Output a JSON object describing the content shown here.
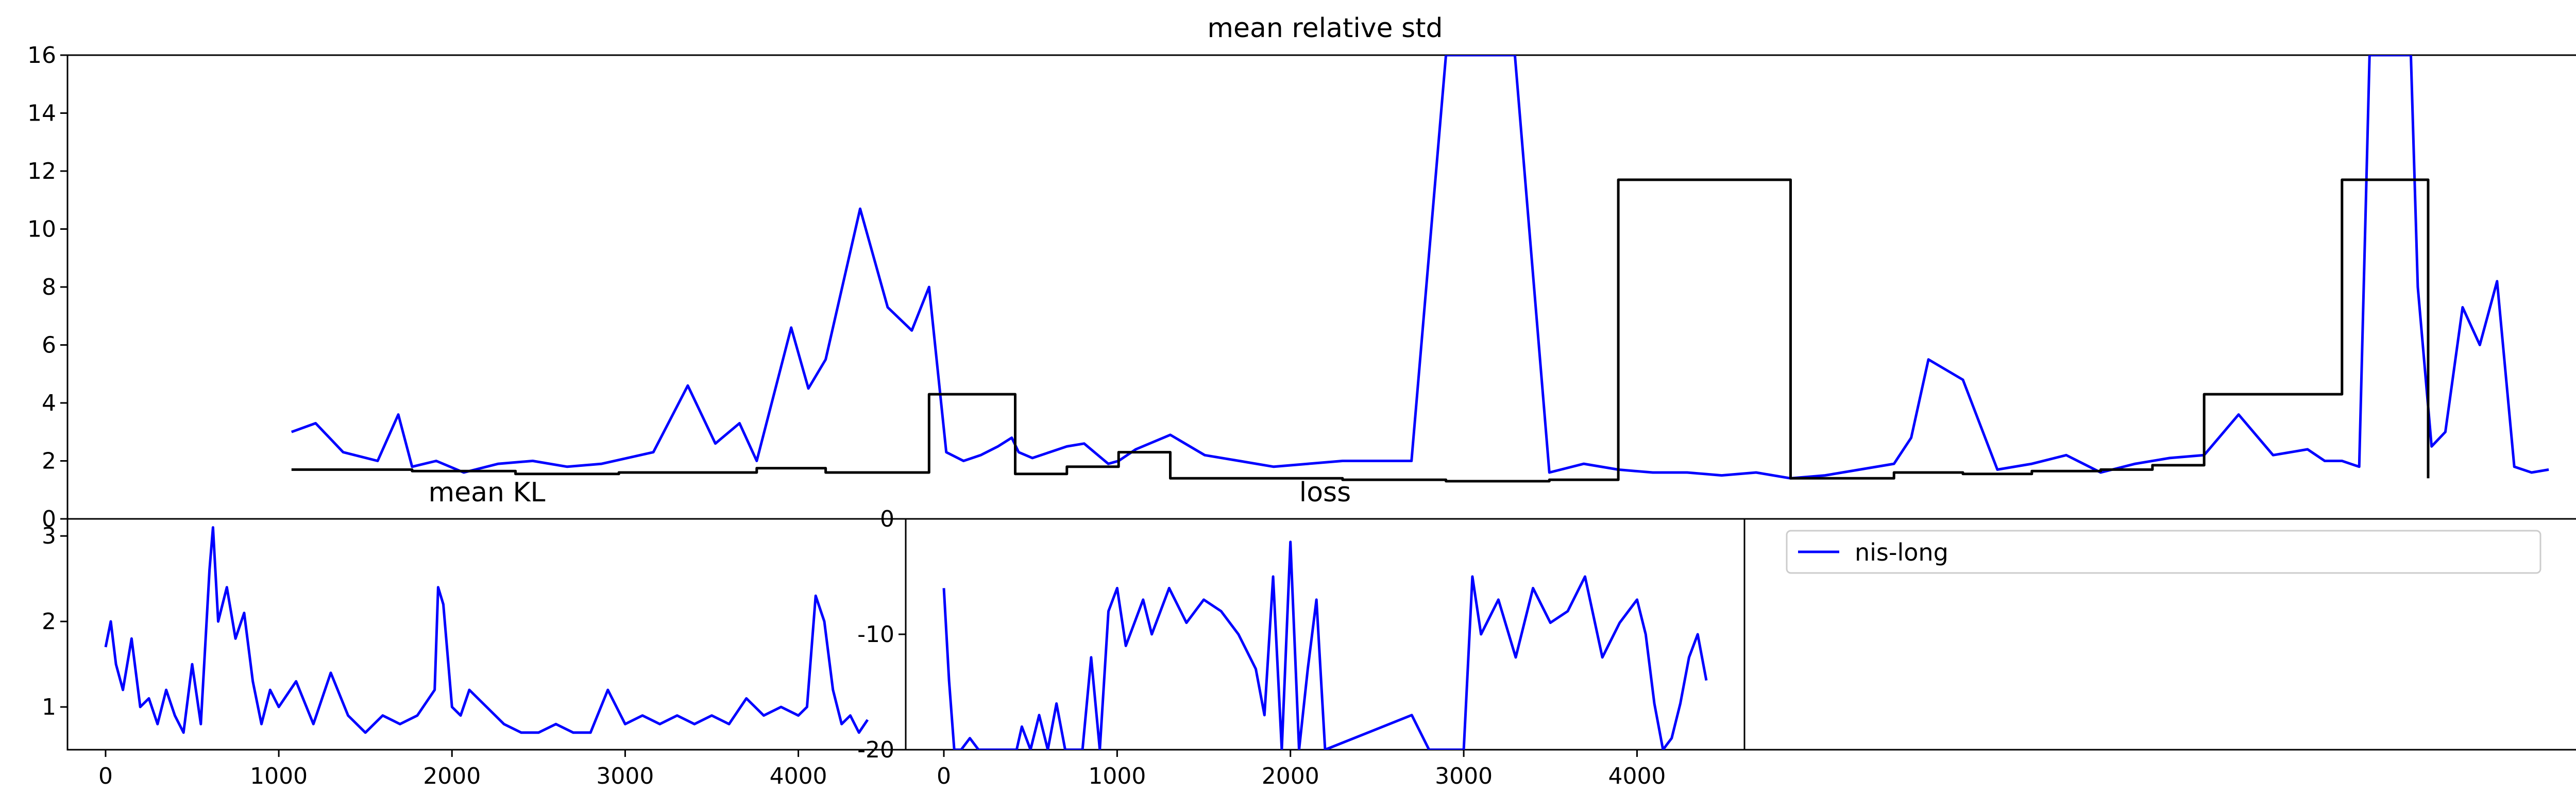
{
  "chart_data": [
    {
      "id": "std",
      "type": "line",
      "title": "mean relative std",
      "xlim": [
        -200,
        7100
      ],
      "ylim": [
        0,
        16
      ],
      "yticks": [
        0,
        2,
        4,
        6,
        8,
        10,
        12,
        14,
        16
      ],
      "series": [
        {
          "name": "nis-long",
          "color": "#0000ff",
          "x": [
            450,
            520,
            600,
            700,
            760,
            800,
            870,
            950,
            1050,
            1150,
            1250,
            1350,
            1500,
            1600,
            1680,
            1750,
            1800,
            1900,
            1950,
            2000,
            2100,
            2180,
            2250,
            2300,
            2350,
            2400,
            2450,
            2500,
            2540,
            2560,
            2600,
            2650,
            2700,
            2750,
            2820,
            2850,
            2900,
            3000,
            3100,
            3200,
            3300,
            3400,
            3500,
            3600,
            3700,
            3800,
            3900,
            4000,
            4100,
            4200,
            4300,
            4400,
            4500,
            4600,
            4700,
            4800,
            4900,
            5000,
            5100,
            5150,
            5200,
            5300,
            5400,
            5500,
            5600,
            5700,
            5800,
            5900,
            6000,
            6100,
            6200,
            6300,
            6350,
            6400,
            6450,
            6480,
            6500,
            6550,
            6600,
            6620,
            6660,
            6700,
            6750,
            6800,
            6850,
            6900,
            6950,
            7000
          ],
          "y": [
            3.0,
            3.3,
            2.3,
            2.0,
            3.6,
            1.8,
            2.0,
            1.6,
            1.9,
            2.0,
            1.8,
            1.9,
            2.3,
            4.6,
            2.6,
            3.3,
            2.0,
            6.6,
            4.5,
            5.5,
            10.7,
            7.3,
            6.5,
            8.0,
            2.3,
            2.0,
            2.2,
            2.5,
            2.8,
            2.3,
            2.1,
            2.3,
            2.5,
            2.6,
            1.9,
            2.0,
            2.4,
            2.9,
            2.2,
            2.0,
            1.8,
            1.9,
            2.0,
            2.0,
            2.0,
            16,
            16,
            16,
            1.6,
            1.9,
            1.7,
            1.6,
            1.6,
            1.5,
            1.6,
            1.4,
            1.5,
            1.7,
            1.9,
            2.8,
            5.5,
            4.8,
            1.7,
            1.9,
            2.2,
            1.6,
            1.9,
            2.1,
            2.2,
            3.6,
            2.2,
            2.4,
            2.0,
            2.0,
            1.8,
            16,
            16,
            16,
            16,
            8.0,
            2.5,
            3.0,
            7.3,
            6.0,
            8.2,
            1.8,
            1.6,
            1.7
          ]
        },
        {
          "name": "",
          "color": "#000000",
          "x": [
            450,
            800,
            1100,
            1400,
            1800,
            2000,
            2300,
            2550,
            2700,
            2850,
            3000,
            3300,
            3500,
            3800,
            4100,
            4300,
            4800,
            5100,
            5300,
            5500,
            5700,
            5850,
            6000,
            6400,
            6650
          ],
          "y": [
            1.7,
            1.65,
            1.55,
            1.6,
            1.75,
            1.6,
            4.3,
            1.55,
            1.8,
            2.3,
            1.4,
            1.4,
            1.35,
            1.3,
            1.35,
            11.7,
            1.4,
            1.6,
            1.55,
            1.65,
            1.7,
            1.85,
            4.3,
            11.7,
            1.4
          ],
          "step": true
        }
      ]
    },
    {
      "id": "kl",
      "type": "line",
      "title": "mean KL",
      "xlim": [
        -220,
        4620
      ],
      "ylim": [
        0.5,
        3.2
      ],
      "yticks": [
        1,
        2,
        3
      ],
      "xticks": [
        0,
        1000,
        2000,
        3000,
        4000
      ],
      "series": [
        {
          "name": "nis-long",
          "color": "#0000ff",
          "x": [
            0,
            30,
            60,
            100,
            150,
            200,
            250,
            300,
            350,
            400,
            450,
            500,
            550,
            600,
            620,
            650,
            700,
            750,
            800,
            850,
            900,
            950,
            1000,
            1100,
            1200,
            1300,
            1400,
            1500,
            1600,
            1700,
            1800,
            1900,
            1920,
            1950,
            2000,
            2050,
            2100,
            2200,
            2300,
            2400,
            2500,
            2600,
            2700,
            2800,
            2900,
            3000,
            3100,
            3200,
            3300,
            3400,
            3500,
            3600,
            3700,
            3800,
            3900,
            4000,
            4050,
            4100,
            4150,
            4200,
            4250,
            4300,
            4350,
            4400
          ],
          "y": [
            1.7,
            2.0,
            1.5,
            1.2,
            1.8,
            1.0,
            1.1,
            0.8,
            1.2,
            0.9,
            0.7,
            1.5,
            0.8,
            2.6,
            3.1,
            2.0,
            2.4,
            1.8,
            2.1,
            1.3,
            0.8,
            1.2,
            1.0,
            1.3,
            0.8,
            1.4,
            0.9,
            0.7,
            0.9,
            0.8,
            0.9,
            1.2,
            2.4,
            2.2,
            1.0,
            0.9,
            1.2,
            1.0,
            0.8,
            0.7,
            0.7,
            0.8,
            0.7,
            0.7,
            1.2,
            0.8,
            0.9,
            0.8,
            0.9,
            0.8,
            0.9,
            0.8,
            1.1,
            0.9,
            1.0,
            0.9,
            1.0,
            2.3,
            2.0,
            1.2,
            0.8,
            0.9,
            0.7,
            0.85
          ]
        }
      ]
    },
    {
      "id": "loss",
      "type": "line",
      "title": "loss",
      "xlim": [
        -220,
        4620
      ],
      "ylim": [
        -20,
        0
      ],
      "yticks": [
        0,
        -10,
        -20
      ],
      "xticks": [
        0,
        1000,
        2000,
        3000,
        4000
      ],
      "series": [
        {
          "name": "nis-long",
          "color": "#0000ff",
          "x": [
            0,
            30,
            60,
            100,
            150,
            200,
            420,
            450,
            500,
            550,
            600,
            650,
            700,
            800,
            850,
            900,
            950,
            1000,
            1050,
            1100,
            1150,
            1200,
            1300,
            1400,
            1500,
            1600,
            1700,
            1800,
            1850,
            1900,
            1950,
            2000,
            2050,
            2100,
            2150,
            2200,
            2700,
            2800,
            3000,
            3050,
            3100,
            3200,
            3300,
            3400,
            3500,
            3600,
            3700,
            3800,
            3900,
            4000,
            4050,
            4100,
            4150,
            4200,
            4250,
            4300,
            4350,
            4400
          ],
          "y": [
            -6,
            -14,
            -20,
            -20,
            -19,
            -20,
            -20,
            -18,
            -20,
            -17,
            -20,
            -16,
            -20,
            -20,
            -12,
            -20,
            -8,
            -6,
            -11,
            -9,
            -7,
            -10,
            -6,
            -9,
            -7,
            -8,
            -10,
            -13,
            -17,
            -5,
            -20,
            -2,
            -20,
            -13,
            -7,
            -20,
            -17,
            -20,
            -20,
            -5,
            -10,
            -7,
            -12,
            -6,
            -9,
            -8,
            -5,
            -12,
            -9,
            -7,
            -10,
            -16,
            -20,
            -19,
            -16,
            -12,
            -10,
            -14
          ]
        }
      ]
    }
  ],
  "legend": {
    "entries": [
      {
        "label": "nis-long",
        "color": "#0000ff"
      }
    ]
  }
}
